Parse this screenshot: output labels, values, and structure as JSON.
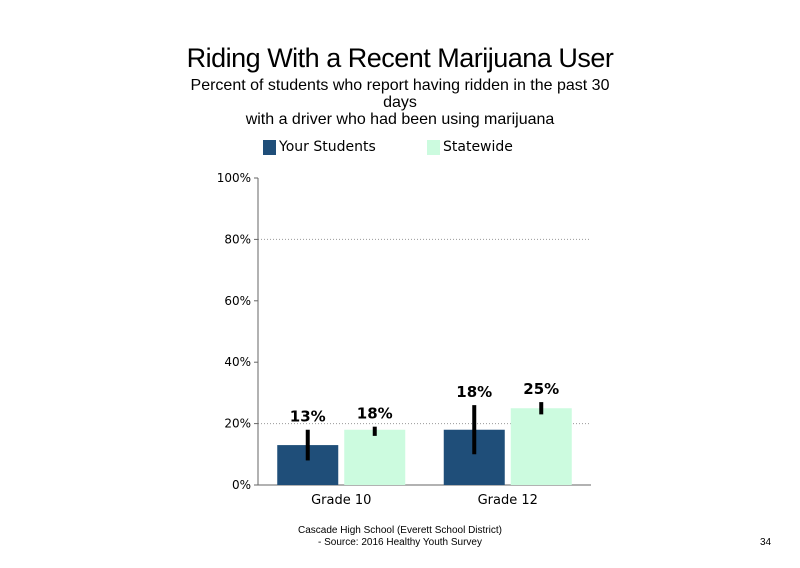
{
  "chart_data": {
    "type": "bar",
    "title": "Riding With a Recent Marijuana User",
    "subtitle_lines": [
      "Percent of students who report having ridden in the past 30",
      "days",
      "with a driver who had been using marijuana"
    ],
    "categories": [
      "Grade 10",
      "Grade 12"
    ],
    "series": [
      {
        "name": "Your Students",
        "color": "#1f4e79",
        "values": [
          13,
          18
        ],
        "value_labels": [
          "13%",
          "18%"
        ],
        "error_low": [
          8,
          10
        ],
        "error_high": [
          18,
          26
        ]
      },
      {
        "name": "Statewide",
        "color": "#ccfbdf",
        "values": [
          18,
          25
        ],
        "value_labels": [
          "18%",
          "25%"
        ],
        "error_low": [
          16,
          23
        ],
        "error_high": [
          19,
          27
        ]
      }
    ],
    "ylim": [
      0,
      100
    ],
    "yticks": [
      0,
      20,
      40,
      60,
      80,
      100
    ],
    "ytick_labels": [
      "0%",
      "20%",
      "40%",
      "60%",
      "80%",
      "100%"
    ],
    "gridlines": [
      20,
      80
    ],
    "legend_position": "top"
  },
  "footer": {
    "line1": "Cascade High School (Everett School District)",
    "line2": "- Source: 2016 Healthy  Youth Survey"
  },
  "page_number": "34"
}
